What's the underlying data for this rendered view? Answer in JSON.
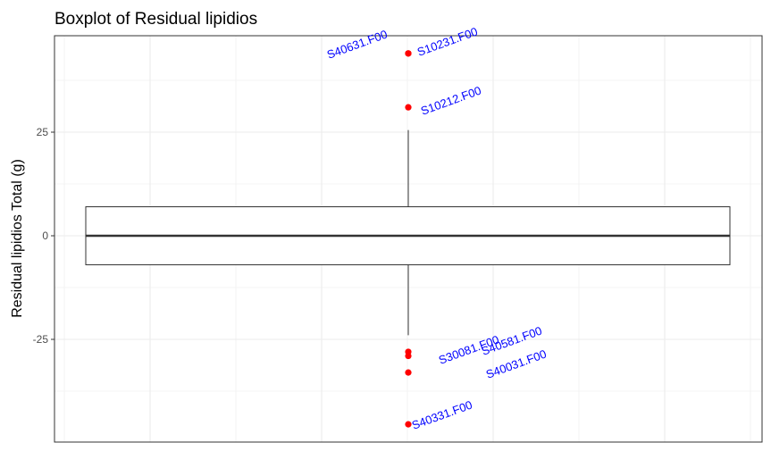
{
  "chart_data": {
    "type": "boxplot",
    "title": "Boxplot of Residual lipidios",
    "ylabel": "Residual lipidios Total (g)",
    "xlabel": "",
    "ylim": [
      -50,
      48
    ],
    "y_ticks": [
      -25,
      0,
      25
    ],
    "y_tick_labels": [
      "-25",
      "0",
      "25"
    ],
    "grid": true,
    "box": {
      "q1": -7,
      "median": 0,
      "q3": 7,
      "whisker_low": -24,
      "whisker_high": 25.5
    },
    "outliers": [
      {
        "label": "S10231.F00",
        "y": 44
      },
      {
        "label": "S40631.F00",
        "y": 44
      },
      {
        "label": "S10212.F00",
        "y": 31
      },
      {
        "label": "S30081.F00",
        "y": -28
      },
      {
        "label": "S40581.F00",
        "y": -29
      },
      {
        "label": "S40031.F00",
        "y": -33
      },
      {
        "label": "S40331.F00",
        "y": -45.5
      }
    ],
    "colors": {
      "outlier_point": "#ff0000",
      "outlier_label": "#0000ff",
      "grid": "#ebebeb",
      "panel_border": "#333333",
      "box": "#333333"
    }
  }
}
